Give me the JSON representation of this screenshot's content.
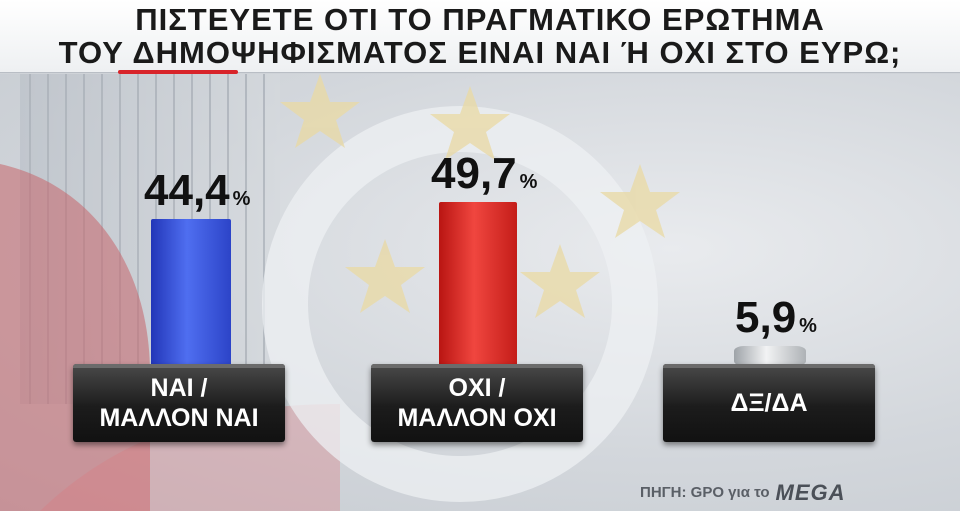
{
  "title": {
    "line1": "ΠΙΣΤΕΥΕΤΕ ΟΤΙ ΤΟ ΠΡΑΓΜΑΤΙΚΟ ΕΡΩΤΗΜΑ",
    "line2": "ΤΟΥ ΔΗΜΟΨΗΦΙΣΜΑΤΟΣ ΕΙΝΑΙ ΝΑΙ  Ή ΟΧΙ ΣΤΟ ΕΥΡΩ;"
  },
  "chart_data": {
    "type": "bar",
    "categories": [
      "ΝΑΙ / ΜΑΛΛΟΝ ΝΑΙ",
      "ΟΧΙ / ΜΑΛΛΟΝ ΟΧΙ",
      "ΔΞ/ΔΑ"
    ],
    "values": [
      44.4,
      49.7,
      5.9
    ],
    "value_labels": [
      "44,4",
      "49,7",
      "5,9"
    ],
    "unit": "%",
    "colors": [
      "#3650e0",
      "#e2352f",
      "#e4e6e8"
    ],
    "ylim": [
      0,
      50
    ],
    "grid": false,
    "legend": "none"
  },
  "labels": [
    {
      "line1": "ΝΑΙ /",
      "line2": "ΜΑΛΛΟΝ ΝΑΙ"
    },
    {
      "line1": "ΟΧΙ /",
      "line2": "ΜΑΛΛΟΝ ΟΧΙ"
    },
    {
      "line1": "ΔΞ/ΔΑ",
      "line2": ""
    }
  ],
  "source": {
    "text": "ΠΗΓΗ: GPO για το",
    "brand": "MEGA"
  },
  "colors": {
    "title_text": "#1a1a1a",
    "accent_red": "#d8242a",
    "plate": "#1c1c1c"
  }
}
